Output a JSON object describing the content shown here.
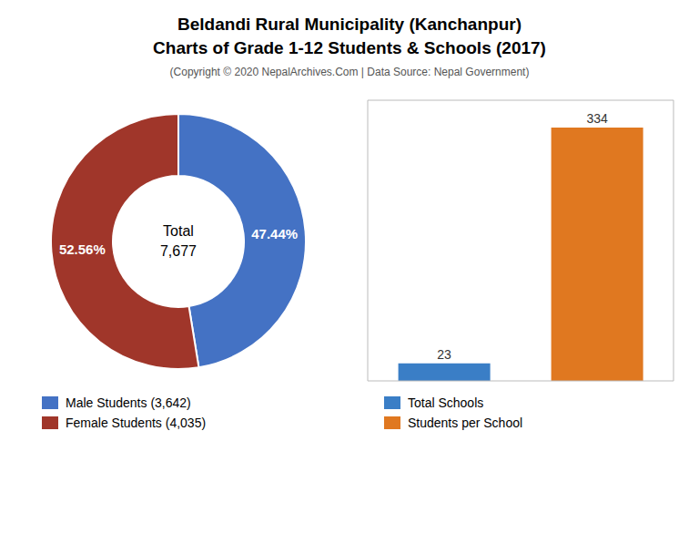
{
  "chart_data": [
    {
      "type": "pie",
      "title": "Beldandi Rural Municipality (Kanchanpur)\nCharts of Grade 1-12 Students & Schools (2017)",
      "subtitle": "(Copyright © 2020 NepalArchives.Com | Data Source: Nepal Government)",
      "categories": [
        "Male Students (3,642)",
        "Female Students (4,035)"
      ],
      "values": [
        47.44,
        52.56
      ],
      "value_labels": [
        "47.44%",
        "52.56%"
      ],
      "colors": [
        "#4472C4",
        "#A0362A"
      ],
      "data_labels": true,
      "annotations": [
        "Total",
        "7,677"
      ],
      "legend": "lower left"
    },
    {
      "type": "bar",
      "categories": [
        "Total Schools",
        "Students per School"
      ],
      "values": [
        23,
        334
      ],
      "colors": [
        "#3A7EC6",
        "#E07820"
      ],
      "ylim": [
        0,
        370
      ],
      "data_labels": true,
      "tick_labels": false,
      "legend": "lower left"
    }
  ]
}
